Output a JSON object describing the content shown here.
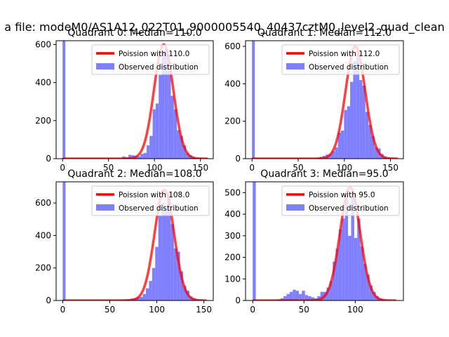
{
  "figure": {
    "suptitle": "a file: modeM0/AS1A12_022T01_9000005540_40437cztM0_level2_quad_clean"
  },
  "chart_data": [
    {
      "type": "bar",
      "title": "Quadrant 0: Median=110.0",
      "median": 110.0,
      "xlim": [
        -7,
        164
      ],
      "ylim": [
        0,
        620
      ],
      "xticks": [
        0,
        50,
        100,
        150
      ],
      "yticks": [
        0,
        200,
        400,
        600
      ],
      "legend_position": "upper-right",
      "legend": [
        "Poission with 110.0",
        "Observed distribution"
      ],
      "series": [
        {
          "name": "Poission with 110.0",
          "kind": "line",
          "color": "#ff0000",
          "lambda": 110.0,
          "peak": 600,
          "x_range": [
            0,
            158
          ]
        },
        {
          "name": "Observed distribution",
          "kind": "histogram",
          "color": "#7f7fff",
          "bins": [
            {
              "x0": 0,
              "x1": 3,
              "y": 620
            },
            {
              "x0": 65,
              "x1": 68.3,
              "y": 12
            },
            {
              "x0": 68.3,
              "x1": 71.6,
              "y": 8
            },
            {
              "x0": 71.6,
              "x1": 74.9,
              "y": 20
            },
            {
              "x0": 74.9,
              "x1": 78.2,
              "y": 18
            },
            {
              "x0": 78.2,
              "x1": 81.5,
              "y": 15
            },
            {
              "x0": 81.5,
              "x1": 84.8,
              "y": 12
            },
            {
              "x0": 84.8,
              "x1": 88.1,
              "y": 25
            },
            {
              "x0": 88.1,
              "x1": 91.4,
              "y": 30
            },
            {
              "x0": 91.4,
              "x1": 94.7,
              "y": 70
            },
            {
              "x0": 94.7,
              "x1": 98.0,
              "y": 120
            },
            {
              "x0": 98.0,
              "x1": 101.3,
              "y": 260
            },
            {
              "x0": 101.3,
              "x1": 104.6,
              "y": 290
            },
            {
              "x0": 104.6,
              "x1": 107.9,
              "y": 440
            },
            {
              "x0": 107.9,
              "x1": 111.2,
              "y": 560
            },
            {
              "x0": 111.2,
              "x1": 114.5,
              "y": 580
            },
            {
              "x0": 114.5,
              "x1": 117.8,
              "y": 480
            },
            {
              "x0": 117.8,
              "x1": 121.1,
              "y": 330
            },
            {
              "x0": 121.1,
              "x1": 124.4,
              "y": 260
            },
            {
              "x0": 124.4,
              "x1": 127.7,
              "y": 150
            },
            {
              "x0": 127.7,
              "x1": 131.0,
              "y": 120
            },
            {
              "x0": 131.0,
              "x1": 134.3,
              "y": 70
            },
            {
              "x0": 134.3,
              "x1": 137.6,
              "y": 30
            },
            {
              "x0": 137.6,
              "x1": 140.9,
              "y": 18
            },
            {
              "x0": 140.9,
              "x1": 144.2,
              "y": 8
            },
            {
              "x0": 144.2,
              "x1": 147.5,
              "y": 4
            },
            {
              "x0": 147.5,
              "x1": 150.8,
              "y": 2
            },
            {
              "x0": 150.8,
              "x1": 154.1,
              "y": 1
            }
          ]
        }
      ]
    },
    {
      "type": "bar",
      "title": "Quadrant 1: Median=112.0",
      "median": 112.0,
      "xlim": [
        -7,
        164
      ],
      "ylim": [
        0,
        630
      ],
      "xticks": [
        0,
        50,
        100,
        150
      ],
      "yticks": [
        0,
        200,
        400,
        600
      ],
      "legend_position": "upper-right",
      "legend": [
        "Poission with 112.0",
        "Observed distribution"
      ],
      "series": [
        {
          "name": "Poission with 112.0",
          "kind": "line",
          "color": "#ff0000",
          "lambda": 112.0,
          "peak": 600,
          "x_range": [
            0,
            158
          ]
        },
        {
          "name": "Observed distribution",
          "kind": "histogram",
          "color": "#7f7fff",
          "bins": [
            {
              "x0": 0,
              "x1": 3,
              "y": 630
            },
            {
              "x0": 70,
              "x1": 73.3,
              "y": 5
            },
            {
              "x0": 73.3,
              "x1": 76.6,
              "y": 10
            },
            {
              "x0": 76.6,
              "x1": 79.9,
              "y": 15
            },
            {
              "x0": 79.9,
              "x1": 83.2,
              "y": 22
            },
            {
              "x0": 83.2,
              "x1": 86.5,
              "y": 25
            },
            {
              "x0": 86.5,
              "x1": 89.8,
              "y": 40
            },
            {
              "x0": 89.8,
              "x1": 93.1,
              "y": 60
            },
            {
              "x0": 93.1,
              "x1": 96.4,
              "y": 140
            },
            {
              "x0": 96.4,
              "x1": 99.7,
              "y": 150
            },
            {
              "x0": 99.7,
              "x1": 103.0,
              "y": 260
            },
            {
              "x0": 103.0,
              "x1": 106.3,
              "y": 280
            },
            {
              "x0": 106.3,
              "x1": 109.6,
              "y": 410
            },
            {
              "x0": 109.6,
              "x1": 112.9,
              "y": 520
            },
            {
              "x0": 112.9,
              "x1": 116.2,
              "y": 560
            },
            {
              "x0": 116.2,
              "x1": 119.5,
              "y": 420
            },
            {
              "x0": 119.5,
              "x1": 122.8,
              "y": 390
            },
            {
              "x0": 122.8,
              "x1": 126.1,
              "y": 250
            },
            {
              "x0": 126.1,
              "x1": 129.4,
              "y": 180
            },
            {
              "x0": 129.4,
              "x1": 132.7,
              "y": 120
            },
            {
              "x0": 132.7,
              "x1": 136.0,
              "y": 60
            },
            {
              "x0": 136.0,
              "x1": 139.3,
              "y": 55
            },
            {
              "x0": 139.3,
              "x1": 142.6,
              "y": 25
            },
            {
              "x0": 142.6,
              "x1": 145.9,
              "y": 10
            },
            {
              "x0": 145.9,
              "x1": 149.2,
              "y": 5
            },
            {
              "x0": 149.2,
              "x1": 152.5,
              "y": 2
            }
          ]
        }
      ]
    },
    {
      "type": "bar",
      "title": "Quadrant 2: Median=108.0",
      "median": 108.0,
      "xlim": [
        -7,
        160
      ],
      "ylim": [
        0,
        730
      ],
      "xticks": [
        0,
        50,
        100,
        150
      ],
      "yticks": [
        0,
        200,
        400,
        600
      ],
      "legend_position": "upper-right",
      "legend": [
        "Poission with 108.0",
        "Observed distribution"
      ],
      "series": [
        {
          "name": "Poission with 108.0",
          "kind": "line",
          "color": "#ff0000",
          "lambda": 108.0,
          "peak": 680,
          "x_range": [
            0,
            153
          ]
        },
        {
          "name": "Observed distribution",
          "kind": "histogram",
          "color": "#7f7fff",
          "bins": [
            {
              "x0": 0,
              "x1": 3,
              "y": 730
            },
            {
              "x0": 62,
              "x1": 65.3,
              "y": 4
            },
            {
              "x0": 65.3,
              "x1": 68.6,
              "y": 6
            },
            {
              "x0": 68.6,
              "x1": 71.9,
              "y": 8
            },
            {
              "x0": 71.9,
              "x1": 75.2,
              "y": 12
            },
            {
              "x0": 75.2,
              "x1": 78.5,
              "y": 15
            },
            {
              "x0": 78.5,
              "x1": 81.8,
              "y": 20
            },
            {
              "x0": 81.8,
              "x1": 85.1,
              "y": 22
            },
            {
              "x0": 85.1,
              "x1": 88.4,
              "y": 40
            },
            {
              "x0": 88.4,
              "x1": 91.7,
              "y": 75
            },
            {
              "x0": 91.7,
              "x1": 95.0,
              "y": 120
            },
            {
              "x0": 95.0,
              "x1": 98.3,
              "y": 200
            },
            {
              "x0": 98.3,
              "x1": 101.6,
              "y": 330
            },
            {
              "x0": 101.6,
              "x1": 104.9,
              "y": 520
            },
            {
              "x0": 104.9,
              "x1": 108.2,
              "y": 600
            },
            {
              "x0": 108.2,
              "x1": 111.5,
              "y": 560
            },
            {
              "x0": 111.5,
              "x1": 114.8,
              "y": 650
            },
            {
              "x0": 114.8,
              "x1": 118.1,
              "y": 470
            },
            {
              "x0": 118.1,
              "x1": 121.4,
              "y": 320
            },
            {
              "x0": 121.4,
              "x1": 124.7,
              "y": 300
            },
            {
              "x0": 124.7,
              "x1": 128.0,
              "y": 180
            },
            {
              "x0": 128.0,
              "x1": 131.3,
              "y": 90
            },
            {
              "x0": 131.3,
              "x1": 134.6,
              "y": 60
            },
            {
              "x0": 134.6,
              "x1": 137.9,
              "y": 25
            },
            {
              "x0": 137.9,
              "x1": 141.2,
              "y": 15
            },
            {
              "x0": 141.2,
              "x1": 144.5,
              "y": 8
            },
            {
              "x0": 144.5,
              "x1": 147.8,
              "y": 3
            }
          ]
        }
      ]
    },
    {
      "type": "bar",
      "title": "Quadrant 3: Median=95.0",
      "median": 95.0,
      "xlim": [
        -7,
        147
      ],
      "ylim": [
        0,
        550
      ],
      "xticks": [
        0,
        50,
        100
      ],
      "yticks": [
        0,
        100,
        200,
        300,
        400,
        500
      ],
      "legend_position": "upper-right",
      "legend": [
        "Poission with 95.0",
        "Observed distribution"
      ],
      "series": [
        {
          "name": "Poission with 95.0",
          "kind": "line",
          "color": "#ff0000",
          "lambda": 95.0,
          "peak": 525,
          "x_range": [
            0,
            140
          ]
        },
        {
          "name": "Observed distribution",
          "kind": "histogram",
          "color": "#7f7fff",
          "bins": [
            {
              "x0": 0,
              "x1": 3,
              "y": 550
            },
            {
              "x0": 24,
              "x1": 27,
              "y": 5
            },
            {
              "x0": 27,
              "x1": 30,
              "y": 10
            },
            {
              "x0": 30,
              "x1": 33,
              "y": 20
            },
            {
              "x0": 33,
              "x1": 36,
              "y": 30
            },
            {
              "x0": 36,
              "x1": 39,
              "y": 40
            },
            {
              "x0": 39,
              "x1": 42,
              "y": 50
            },
            {
              "x0": 42,
              "x1": 45,
              "y": 45
            },
            {
              "x0": 45,
              "x1": 48,
              "y": 30
            },
            {
              "x0": 48,
              "x1": 51,
              "y": 45
            },
            {
              "x0": 51,
              "x1": 54,
              "y": 25
            },
            {
              "x0": 54,
              "x1": 57,
              "y": 20
            },
            {
              "x0": 57,
              "x1": 60,
              "y": 15
            },
            {
              "x0": 60,
              "x1": 63,
              "y": 10
            },
            {
              "x0": 63,
              "x1": 66,
              "y": 20
            },
            {
              "x0": 66,
              "x1": 69,
              "y": 40
            },
            {
              "x0": 69,
              "x1": 72,
              "y": 40
            },
            {
              "x0": 72,
              "x1": 75,
              "y": 60
            },
            {
              "x0": 75,
              "x1": 78,
              "y": 90
            },
            {
              "x0": 78,
              "x1": 81,
              "y": 180
            },
            {
              "x0": 81,
              "x1": 84,
              "y": 240
            },
            {
              "x0": 84,
              "x1": 87,
              "y": 330
            },
            {
              "x0": 87,
              "x1": 90,
              "y": 380
            },
            {
              "x0": 90,
              "x1": 93,
              "y": 490
            },
            {
              "x0": 93,
              "x1": 96,
              "y": 300
            },
            {
              "x0": 96,
              "x1": 99,
              "y": 480
            },
            {
              "x0": 99,
              "x1": 102,
              "y": 290
            },
            {
              "x0": 102,
              "x1": 105,
              "y": 380
            },
            {
              "x0": 105,
              "x1": 108,
              "y": 250
            },
            {
              "x0": 108,
              "x1": 111,
              "y": 170
            },
            {
              "x0": 111,
              "x1": 114,
              "y": 120
            },
            {
              "x0": 114,
              "x1": 117,
              "y": 70
            },
            {
              "x0": 117,
              "x1": 120,
              "y": 40
            },
            {
              "x0": 120,
              "x1": 123,
              "y": 20
            },
            {
              "x0": 123,
              "x1": 126,
              "y": 10
            },
            {
              "x0": 126,
              "x1": 129,
              "y": 5
            }
          ]
        }
      ]
    }
  ]
}
